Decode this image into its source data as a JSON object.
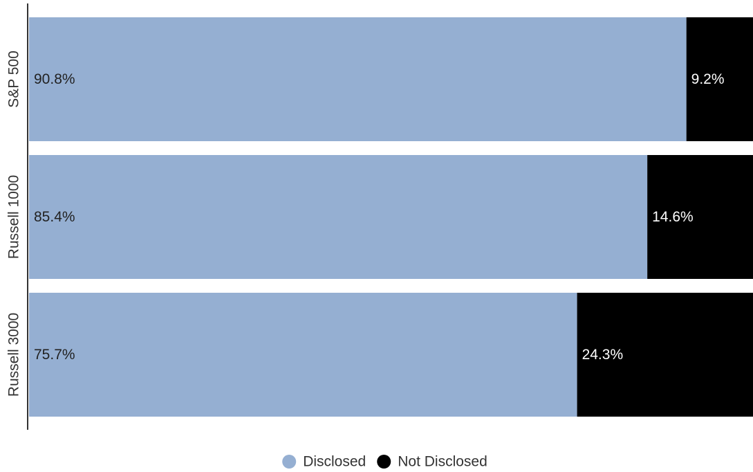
{
  "chart_data": {
    "type": "bar",
    "orientation": "horizontal",
    "stacked": "percent",
    "categories": [
      "S&P 500",
      "Russell 1000",
      "Russell 3000"
    ],
    "series": [
      {
        "name": "Disclosed",
        "values": [
          90.8,
          85.4,
          75.7
        ],
        "labels": [
          "90.8%",
          "85.4%",
          "75.7%"
        ],
        "color": "#95afd2",
        "label_color": "#222222"
      },
      {
        "name": "Not Disclosed",
        "values": [
          9.2,
          14.6,
          24.3
        ],
        "labels": [
          "9.2%",
          "14.6%",
          "24.3%"
        ],
        "color": "#000000",
        "label_color": "#ffffff"
      }
    ],
    "xlim": [
      0,
      100
    ],
    "grid": false,
    "legend_position": "bottom-center",
    "title": "",
    "xlabel": "",
    "ylabel": ""
  }
}
